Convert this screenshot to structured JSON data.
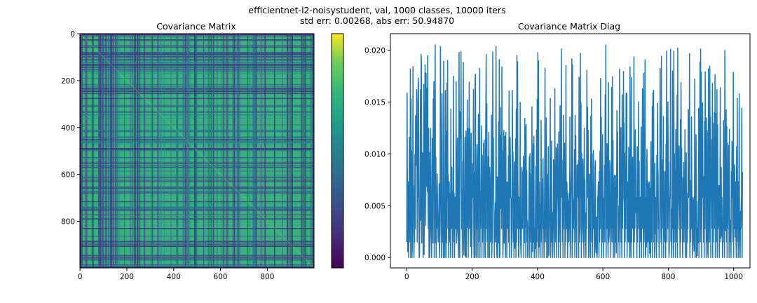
{
  "figure": {
    "suptitle_line1": "efficientnet-l2-noisystudent, val, 1000 classes, 10000 iters",
    "suptitle_line2": "std err: 0.00268, abs err: 50.94870"
  },
  "chart_data": [
    {
      "type": "heatmap",
      "title": "Covariance Matrix",
      "rows": 1000,
      "cols": 1000,
      "x_ticks": [
        "0",
        "200",
        "400",
        "600",
        "800"
      ],
      "x_tick_values": [
        0,
        200,
        400,
        600,
        800
      ],
      "y_ticks": [
        "0",
        "200",
        "400",
        "600",
        "800"
      ],
      "y_tick_values": [
        0,
        200,
        400,
        600,
        800
      ],
      "xlim": [
        -0.5,
        999.5
      ],
      "ylim": [
        999.5,
        -0.5
      ],
      "colormap": "viridis",
      "colorbar": true,
      "dominant_color": "#3ab07f",
      "band_colors": [
        "#3b528b",
        "#472d7b",
        "#31688e",
        "#21918c"
      ],
      "low_color": "#440154",
      "high_color": "#fde725"
    },
    {
      "type": "line",
      "title": "Covariance Matrix Diag",
      "x_ticks": [
        "0",
        "200",
        "400",
        "600",
        "800",
        "1000"
      ],
      "x_tick_values": [
        0,
        200,
        400,
        600,
        800,
        1000
      ],
      "y_ticks": [
        "0.000",
        "0.005",
        "0.010",
        "0.015",
        "0.020"
      ],
      "y_tick_values": [
        0,
        0.005,
        0.01,
        0.015,
        0.02
      ],
      "xlim": [
        -50,
        1050
      ],
      "ylim": [
        -0.001,
        0.0216
      ],
      "n_points": 1000,
      "y_range": [
        0.0,
        0.0207
      ],
      "line_color": "#1f77b4",
      "series": [
        {
          "x_start": 0,
          "x_step": 2,
          "values": [
            0.0015,
            0.0058,
            0.0073,
            0.0,
            0.0116,
            0.0015,
            0.0,
            0.0028,
            0.0,
            0.0031,
            0.0058,
            0.0,
            0.0015,
            0.0028,
            0.0115,
            0.0162,
            0.0015,
            0.0058,
            0.0166,
            0.0,
            0.0028,
            0.0162,
            0.0196,
            0.0014,
            0.0101,
            0.0,
            0.0167,
            0.0058,
            0.0186,
            0.0031,
            0.0116,
            0.0163,
            0.0195,
            0.0028,
            0.0,
            0.0,
            0.0031,
            0.0028,
            0.0,
            0.0115,
            0.0014,
            0.0087,
            0.0,
            0.0108,
            0.0014,
            0.0,
            0.0028,
            0.0058,
            0.0015,
            0.0031,
            0.0,
            0.0073,
            0.0144,
            0.0,
            0.0158,
            0.0015,
            0.0,
            0.0031,
            0.0,
            0.0161,
            0.0,
            0.0014,
            0.0058,
            0.0028,
            0.0,
            0.0073,
            0.0015,
            0.0,
            0.0028,
            0.0087,
            0.0,
            0.0028,
            0.0015,
            0.0,
            0.0058,
            0.0028,
            0.0014,
            0.0073,
            0.0031,
            0.0,
            0.0198,
            0.0,
            0.0134,
            0.0199,
            0.0028,
            0.0,
            0.0087,
            0.0015,
            0.0031,
            0.0116,
            0.0014,
            0.0,
            0.0058,
            0.0029,
            0.0,
            0.0072,
            0.0028,
            0.0087,
            0.0015,
            0.0,
            0.0028,
            0.0058,
            0.0162,
            0.0,
            0.0,
            0.0177,
            0.0,
            0.0073,
            0.0028,
            0.0,
            0.0015,
            0.0058,
            0.0,
            0.0028,
            0.0088,
            0.0,
            0.0015,
            0.0029,
            0.0,
            0.0058,
            0.0,
            0.0145,
            0.0028,
            0.0015,
            0.0,
            0.0058,
            0.0,
            0.0087,
            0.0015,
            0.0028,
            0.0,
            0.0016,
            0.0116,
            0.0058,
            0.0,
            0.0028,
            0.0015,
            0.0072,
            0.0,
            0.0,
            0.0059,
            0.0014,
            0.0,
            0.0145,
            0.0087,
            0.0028,
            0.0043,
            0.0,
            0.0058,
            0.0014,
            0.0117,
            0.0,
            0.0028,
            0.0,
            0.0073,
            0.0028,
            0.0015,
            0.0,
            0.0116,
            0.0058,
            0.0,
            0.0028,
            0.0102,
            0.0015,
            0.0,
            0.0028,
            0.0058,
            0.0,
            0.0015,
            0.0028,
            0.0073,
            0.0,
            0.0058,
            0.0028,
            0.0015,
            0.0,
            0.0087,
            0.0028,
            0.0058,
            0.0,
            0.0014,
            0.0029,
            0.0,
            0.0058,
            0.0015,
            0.0,
            0.0028,
            0.0073,
            0.0,
            0.0015,
            0.0058,
            0.0,
            0.0028,
            0.0087,
            0.0015,
            0.0,
            0.0028,
            0.0058,
            0.0,
            0.0015,
            0.0028,
            0.0,
            0.0058,
            0.0073,
            0.0,
            0.0028,
            0.0015,
            0.0,
            0.0058,
            0.0028,
            0.0,
            0.0087,
            0.0015,
            0.0028,
            0.0,
            0.0058,
            0.0,
            0.0015,
            0.0028,
            0.0073,
            0.0,
            0.0058,
            0.0015,
            0.0,
            0.0028,
            0.0058,
            0.0,
            0.0015,
            0.0028,
            0.0,
            0.0087,
            0.0058,
            0.0,
            0.0015,
            0.0028,
            0.0,
            0.0073,
            0.0058,
            0.0015,
            0.0,
            0.0028,
            0.0058,
            0.0,
            0.0015,
            0.0028,
            0.0073,
            0.0,
            0.0058,
            0.0015,
            0.0028,
            0.0,
            0.0058,
            0.0087,
            0.0,
            0.0015,
            0.0028,
            0.0058,
            0.0,
            0.0015,
            0.0028,
            0.0,
            0.0073,
            0.0058,
            0.0,
            0.0015,
            0.0028,
            0.0058,
            0.0,
            0.0015,
            0.0087,
            0.0028,
            0.0,
            0.0058,
            0.0015,
            0.0,
            0.0028,
            0.0073,
            0.0058,
            0.0,
            0.0015,
            0.0028,
            0.0,
            0.0058,
            0.0015,
            0.0,
            0.0028,
            0.0058,
            0.0,
            0.0087,
            0.0015,
            0.0028,
            0.0,
            0.0058,
            0.0073,
            0.0,
            0.0015,
            0.0028,
            0.0058,
            0.0,
            0.0015,
            0.0028,
            0.0,
            0.0058,
            0.0015,
            0.0073,
            0.0,
            0.0028,
            0.0058,
            0.0,
            0.0015,
            0.0028,
            0.0087,
            0.0,
            0.0058,
            0.0015,
            0.0028,
            0.0,
            0.0058,
            0.0,
            0.0015,
            0.0028,
            0.0073,
            0.0058,
            0.0,
            0.0015,
            0.0028,
            0.0,
            0.0058,
            0.0015,
            0.0,
            0.0028,
            0.0058,
            0.0087,
            0.0,
            0.0015,
            0.0028,
            0.0058,
            0.0,
            0.0073,
            0.0015,
            0.0028,
            0.0,
            0.0058,
            0.0,
            0.0015,
            0.0028,
            0.0058,
            0.0,
            0.0015,
            0.0028,
            0.0087,
            0.0058,
            0.0,
            0.0015,
            0.0073,
            0.0028,
            0.0,
            0.0058,
            0.0015,
            0.0,
            0.0028,
            0.0058,
            0.0,
            0.0015,
            0.0028,
            0.0,
            0.0058,
            0.0087,
            0.0015,
            0.0,
            0.0028,
            0.0073,
            0.0058,
            0.0,
            0.0015,
            0.0028,
            0.0,
            0.0058,
            0.0015,
            0.0,
            0.0028,
            0.0058,
            0.0,
            0.0015,
            0.0087,
            0.0028,
            0.0,
            0.0058,
            0.0073,
            0.0015,
            0.0,
            0.0028,
            0.0058,
            0.0,
            0.0015,
            0.0028,
            0.0,
            0.0058,
            0.0015,
            0.0028,
            0.0087,
            0.0,
            0.0058,
            0.0073,
            0.0015,
            0.0,
            0.0028,
            0.0058,
            0.0,
            0.0015,
            0.0028,
            0.0,
            0.0058,
            0.0015,
            0.0,
            0.0028,
            0.0087,
            0.0058,
            0.0,
            0.0015,
            0.0073,
            0.0028,
            0.0,
            0.0058,
            0.0015,
            0.0028,
            0.0,
            0.0058,
            0.0,
            0.0015,
            0.0028,
            0.0058,
            0.0087,
            0.0,
            0.0015,
            0.0028,
            0.0073,
            0.0,
            0.0058,
            0.0015,
            0.0028,
            0.0,
            0.0058,
            0.0,
            0.0015,
            0.0028,
            0.0058,
            0.0,
            0.0087,
            0.0015,
            0.0028,
            0.0,
            0.0058,
            0.0073,
            0.0015,
            0.0,
            0.0028,
            0.0058,
            0.0,
            0.0015,
            0.0028,
            0.0,
            0.0058,
            0.0015,
            0.0087,
            0.0,
            0.0028,
            0.0058,
            0.0,
            0.0015,
            0.0073,
            0.0028,
            0.0,
            0.0058,
            0.0015,
            0.0,
            0.0028,
            0.0058,
            0.0,
            0.0015,
            0.0028,
            0.0087,
            0.0058,
            0.0,
            0.0015,
            0.0028,
            0.0,
            0.0073,
            0.0058,
            0.0015,
            0.0,
            0.0028,
            0.0058,
            0.0,
            0.0015,
            0.0028,
            0.0,
            0.0058,
            0.0087,
            0.0015,
            0.0,
            0.0028,
            0.0058,
            0.0073,
            0.0,
            0.0015,
            0.0028,
            0.0,
            0.0058,
            0.0015,
            0.0,
            0.0028,
            0.0058,
            0.0
          ]
        }
      ]
    }
  ]
}
